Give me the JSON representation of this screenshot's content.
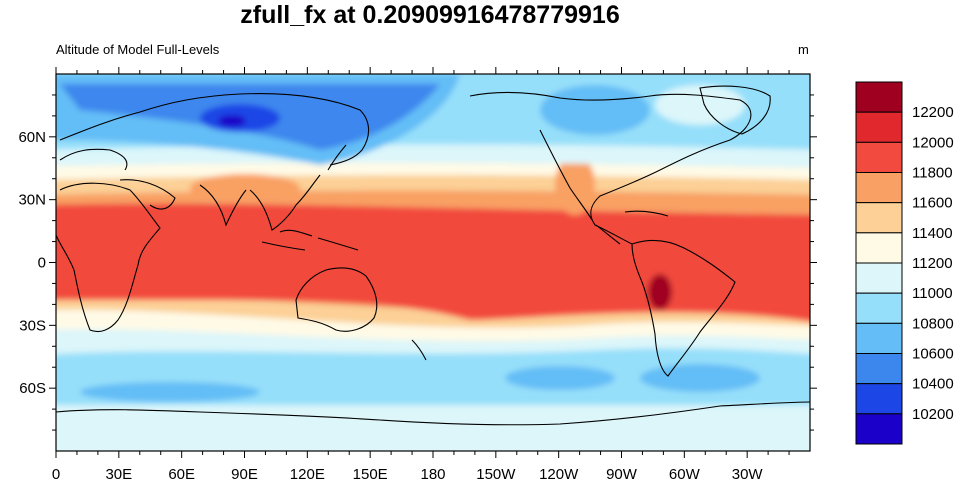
{
  "title": "zfull_fx at 0.20909916478779916",
  "left_subtitle": "Altitude of Model Full-Levels",
  "right_subtitle": "m",
  "map": {
    "projection": "cylindrical-equidistant",
    "lon_range": [
      0,
      360
    ],
    "lat_range": [
      -90,
      90
    ],
    "x_ticks": [
      {
        "lon": 0,
        "label": "0"
      },
      {
        "lon": 30,
        "label": "30E"
      },
      {
        "lon": 60,
        "label": "60E"
      },
      {
        "lon": 90,
        "label": "90E"
      },
      {
        "lon": 120,
        "label": "120E"
      },
      {
        "lon": 150,
        "label": "150E"
      },
      {
        "lon": 180,
        "label": "180"
      },
      {
        "lon": 210,
        "label": "150W"
      },
      {
        "lon": 240,
        "label": "120W"
      },
      {
        "lon": 270,
        "label": "90W"
      },
      {
        "lon": 300,
        "label": "60W"
      },
      {
        "lon": 330,
        "label": "30W"
      }
    ],
    "y_ticks": [
      {
        "lat": 60,
        "label": "60N"
      },
      {
        "lat": 30,
        "label": "30N"
      },
      {
        "lat": 0,
        "label": "0"
      },
      {
        "lat": -30,
        "label": "30S"
      },
      {
        "lat": -60,
        "label": "60S"
      }
    ],
    "field_description_levels": {
      "equatorial_band": "11800-12000",
      "subtropics": "11400-11800",
      "midlatitudes": "11000-11400",
      "high_latitudes": "10400-10800",
      "tibetan_andes_peaks": "12000-12200"
    }
  },
  "colorbar": {
    "colors": [
      "#1a00c8",
      "#1c46e6",
      "#3c87ee",
      "#64bdf6",
      "#96dffa",
      "#dcf6fa",
      "#fffae6",
      "#fcd096",
      "#f9a064",
      "#f24a3e",
      "#e1282d",
      "#a00020"
    ],
    "labels": [
      "10200",
      "10400",
      "10600",
      "10800",
      "11000",
      "11200",
      "11400",
      "11600",
      "11800",
      "12000",
      "12200"
    ]
  },
  "colors": {
    "ocean_fill": "#dcf6fa",
    "coastline": "#000000"
  }
}
